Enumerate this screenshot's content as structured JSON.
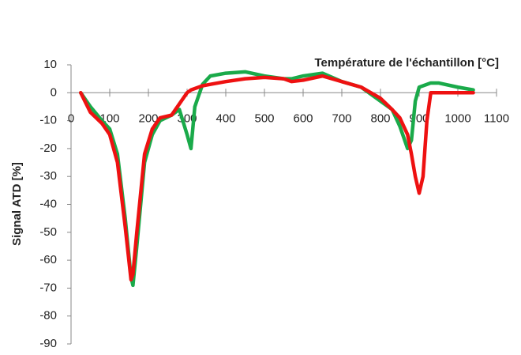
{
  "chart_data": {
    "type": "line",
    "x_label": "Température de l'échantillon  [°C]",
    "y_label": "Signal ATD [%]",
    "x": [
      25,
      50,
      80,
      100,
      120,
      140,
      155,
      160,
      170,
      190,
      210,
      230,
      260,
      280,
      300,
      310,
      320,
      340,
      360,
      400,
      450,
      500,
      550,
      570,
      600,
      650,
      700,
      750,
      800,
      830,
      850,
      870,
      880,
      890,
      900,
      910,
      920,
      930,
      950,
      1000,
      1040
    ],
    "series": [
      {
        "color": "#1aaa4a",
        "values": [
          0,
          -5,
          -10,
          -13,
          -22,
          -45,
          -66,
          -69,
          -55,
          -25,
          -15,
          -10,
          -8,
          -6,
          -15,
          -20,
          -5,
          3,
          6,
          7,
          7.5,
          6,
          5,
          5,
          6,
          7,
          4,
          2,
          -3,
          -6,
          -12,
          -20,
          -17,
          -3,
          2,
          2.5,
          3,
          3.5,
          3.5,
          2,
          1
        ]
      },
      {
        "color": "#ee1111",
        "values": [
          0,
          -7,
          -11,
          -15,
          -25,
          -48,
          -67,
          -65,
          -50,
          -22,
          -13,
          -9,
          -8,
          -4,
          0,
          1,
          1.5,
          2.5,
          3,
          4,
          5,
          5.5,
          5,
          4,
          4.5,
          6,
          4,
          2,
          -2,
          -6,
          -9,
          -15,
          -22,
          -30,
          -36,
          -30,
          -10,
          0,
          0,
          0,
          0
        ]
      }
    ],
    "xlim": [
      0,
      1100
    ],
    "xticks": [
      0,
      100,
      200,
      300,
      400,
      500,
      600,
      700,
      800,
      900,
      1000,
      1100
    ],
    "ylim": [
      -90,
      10
    ],
    "yticks": [
      -90,
      -80,
      -70,
      -60,
      -50,
      -40,
      -30,
      -20,
      -10,
      0,
      10
    ]
  }
}
